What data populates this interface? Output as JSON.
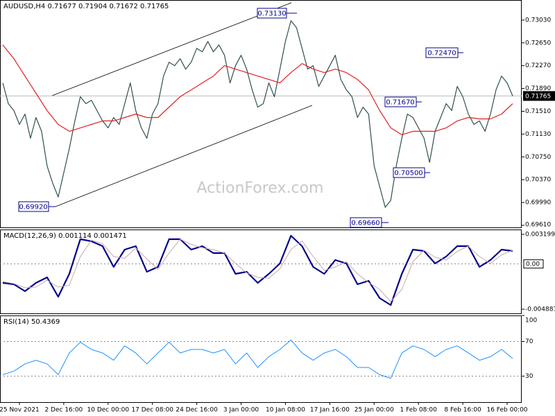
{
  "chart_data": [
    {
      "type": "line",
      "title": "AUDUSD,H4 0.71677 0.71904 0.71672 0.71765",
      "watermark": "ActionForex.com",
      "categories": [
        null,
        null,
        null,
        "25 Nov 2021",
        null,
        null,
        null,
        null,
        null,
        null,
        null,
        "2 Dec 16:00",
        null,
        null,
        null,
        null,
        null,
        null,
        null,
        "10 Dec 00:00",
        null,
        null,
        null,
        null,
        null,
        null,
        null,
        "17 Dec 08:00",
        null,
        null,
        null,
        null,
        null,
        null,
        null,
        "24 Dec 16:00",
        null,
        null,
        null,
        null,
        null,
        null,
        null,
        "3 Jan 00:00",
        null,
        null,
        null,
        null,
        null,
        null,
        null,
        "10 Jan 08:00",
        null,
        null,
        null,
        null,
        null,
        null,
        null,
        "17 Jan 16:00",
        null,
        null,
        null,
        null,
        null,
        null,
        null,
        "25 Jan 00:00",
        null,
        null,
        null,
        null,
        null,
        null,
        null,
        "1 Feb 08:00",
        null,
        null,
        null,
        null,
        null,
        null,
        null,
        "8 Feb 16:00",
        null,
        null,
        null,
        null,
        null,
        null,
        null,
        "16 Feb 00:00",
        null
      ],
      "series": [
        {
          "color": "#2f4f4f",
          "values": [
            0.71982,
            0.71637,
            0.71522,
            0.71291,
            0.71464,
            0.71061,
            0.71406,
            0.71176,
            0.706,
            0.70313,
            0.70082,
            0.70485,
            0.70888,
            0.71349,
            0.71752,
            0.71637,
            0.71694,
            0.71522,
            0.71349,
            0.71234,
            0.71406,
            0.71291,
            0.71637,
            0.71982,
            0.71522,
            0.71234,
            0.71061,
            0.71464,
            0.71637,
            0.72097,
            0.72328,
            0.7227,
            0.72385,
            0.72212,
            0.72328,
            0.72558,
            0.725,
            0.72673,
            0.725,
            0.72616,
            0.72443,
            0.71982,
            0.7227,
            0.72443,
            0.72212,
            0.71867,
            0.71579,
            0.71637,
            0.71982,
            0.71752,
            0.72212,
            0.72673,
            0.73019,
            0.72903,
            0.72558,
            0.72212,
            0.7227,
            0.71925,
            0.72097,
            0.7227,
            0.72443,
            0.7204,
            0.71867,
            0.71752,
            0.71406,
            0.71579,
            0.71464,
            0.706,
            0.70255,
            0.69909,
            0.70025,
            0.706,
            0.71061,
            0.71464,
            0.71406,
            0.71234,
            0.71061,
            0.70658,
            0.71176,
            0.71406,
            0.71637,
            0.71522,
            0.71925,
            0.71752,
            0.71464,
            0.71291,
            0.71349,
            0.71176,
            0.71464,
            0.71867,
            0.72097,
            0.71982,
            0.71765
          ]
        },
        {
          "color": "#e02020",
          "values": [
            0.72616,
            0.725,
            0.72385,
            0.72241,
            0.72097,
            0.71953,
            0.7181,
            0.71666,
            0.71522,
            0.71406,
            0.71291,
            0.71234,
            0.71176,
            0.71205,
            0.71234,
            0.71263,
            0.71291,
            0.7132,
            0.71349,
            0.71349,
            0.71349,
            0.71378,
            0.71406,
            0.71435,
            0.71464,
            0.71435,
            0.71406,
            0.71406,
            0.71406,
            0.71493,
            0.71579,
            0.71666,
            0.71752,
            0.7181,
            0.71867,
            0.71925,
            0.71982,
            0.7204,
            0.72097,
            0.72184,
            0.7227,
            0.72241,
            0.72212,
            0.72184,
            0.72155,
            0.72126,
            0.72097,
            0.72069,
            0.7204,
            0.72011,
            0.71982,
            0.72069,
            0.72155,
            0.7223,
            0.72305,
            0.72259,
            0.72212,
            0.72184,
            0.72155,
            0.72184,
            0.72212,
            0.72184,
            0.72155,
            0.72097,
            0.7204,
            0.71953,
            0.71867,
            0.71694,
            0.71522,
            0.71378,
            0.71234,
            0.71176,
            0.71119,
            0.71147,
            0.71176,
            0.71176,
            0.71176,
            0.71176,
            0.71176,
            0.71205,
            0.71234,
            0.71291,
            0.71349,
            0.71378,
            0.71406,
            0.71395,
            0.71383,
            0.71383,
            0.71383,
            0.71424,
            0.71464,
            0.7155,
            0.71637
          ]
        }
      ],
      "last_price": 0.71765,
      "annotations": [
        "0.73130",
        "0.72470",
        "0.71670",
        "0.70500",
        "0.69920",
        "0.69660"
      ],
      "ylim": [
        0.69575,
        0.73364
      ],
      "yticks": [
        {
          "value": 0.7303,
          "label": "0.73030"
        },
        {
          "value": 0.7265,
          "label": "0.72650"
        },
        {
          "value": 0.7227,
          "label": "0.72270"
        },
        {
          "value": 0.7189,
          "label": "0.71890"
        },
        {
          "value": 0.7151,
          "label": "0.71510"
        },
        {
          "value": 0.7113,
          "label": "0.71130"
        },
        {
          "value": 0.7075,
          "label": "0.70750"
        },
        {
          "value": 0.7037,
          "label": "0.70370"
        },
        {
          "value": 0.6999,
          "label": "0.69990"
        },
        {
          "value": 0.6961,
          "label": "0.69610"
        }
      ]
    },
    {
      "type": "line",
      "title": "MACD(12,26,9) 0.001114 0.001471",
      "series": [
        {
          "color": "#00008b",
          "width": 2.2,
          "values": [
            -0.002044,
            -0.002194,
            -0.002942,
            -0.002044,
            -0.001445,
            -0.003541,
            -0.001071,
            0.002673,
            0.002448,
            0.001924,
            -0.000322,
            0.00155,
            0.001924,
            -0.000846,
            -0.000322,
            0.002673,
            0.002673,
            0.00155,
            0.001924,
            0.001175,
            0.001175,
            -0.001071,
            -0.000846,
            -0.002044,
            -0.001071,
            5.2e-05,
            0.003047,
            0.001924,
            -0.000322,
            -0.001071,
            0.000427,
            5.2e-05,
            -0.002194,
            -0.001819,
            -0.003691,
            -0.00444,
            -0.001071,
            0.00155,
            0.0014,
            5.2e-05,
            0.000801,
            0.001924,
            0.001924,
            -0.000322,
            0.000427,
            0.00155,
            0.0014
          ]
        },
        {
          "color": "#c9a9a9",
          "width": 1,
          "values": [
            -0.0019,
            -0.002119,
            -0.002568,
            -0.002493,
            -0.001745,
            -0.002493,
            -0.002306,
            0.000801,
            0.002561,
            0.002186,
            0.000801,
            0.000614,
            0.001737,
            0.000539,
            -0.000584,
            0.001176,
            0.002673,
            0.002112,
            0.001737,
            0.00155,
            0.001175,
            5.2e-05,
            -0.000959,
            -0.001445,
            -0.001558,
            -0.00051,
            0.00155,
            0.002486,
            0.000801,
            -0.000697,
            -0.000322,
            0.00024,
            -0.001071,
            -0.002007,
            -0.002755,
            -0.004066,
            -0.002756,
            0.00024,
            0.001475,
            0.000726,
            0.000427,
            0.001363,
            0.001924,
            0.000801,
            5.3e-05,
            0.000989,
            0.001475
          ]
        }
      ],
      "levels": [
        {
          "value": 0,
          "label": "0.00"
        }
      ],
      "ylim": [
        -0.00534,
        0.00372
      ],
      "yticks": [
        0.003199,
        -0.004887
      ]
    },
    {
      "type": "line",
      "title": "RSI(14) 50.4369",
      "series": [
        {
          "color": "#1e90ff",
          "width": 1,
          "values": [
            31.7,
            35.8,
            44.2,
            48.3,
            44.2,
            31.7,
            56.7,
            69.2,
            60.8,
            56.7,
            48.3,
            65.0,
            56.7,
            44.2,
            56.7,
            69.2,
            56.7,
            60.8,
            60.8,
            56.7,
            60.8,
            44.2,
            56.7,
            40.0,
            52.5,
            60.8,
            71.7,
            56.7,
            48.3,
            56.7,
            60.8,
            52.5,
            40.0,
            40.0,
            31.7,
            27.5,
            56.7,
            65.0,
            60.8,
            52.5,
            60.8,
            65.0,
            56.7,
            48.3,
            52.5,
            60.8,
            50.4
          ]
        }
      ],
      "levels": [
        30,
        70
      ],
      "ylim": [
        0,
        100
      ],
      "yticks": [
        100,
        70,
        30
      ]
    }
  ]
}
